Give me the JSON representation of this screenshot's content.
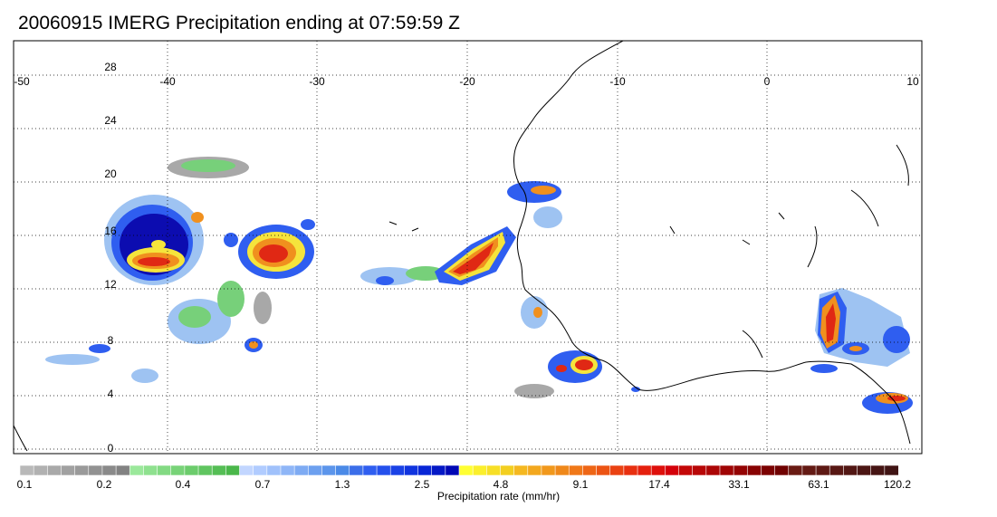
{
  "title": "20060915 IMERG Precipitation ending at 07:59:59 Z",
  "map": {
    "lon_min": -50,
    "lon_max": 10,
    "lat_min": -0.5,
    "lat_max": 30.5,
    "lon_ticks": [
      "-50",
      "-40",
      "-30",
      "-20",
      "-10",
      "0",
      "10"
    ],
    "lat_ticks": [
      "28",
      "24",
      "20",
      "16",
      "12",
      "8",
      "4",
      "0"
    ],
    "colors": {
      "gray": "#a8a8a8",
      "green": "#77d07a",
      "lightblue": "#9ec3f2",
      "blue": "#2f5ef0",
      "darkblue": "#0c0cb0",
      "yellow": "#f5e43c",
      "orange": "#f0901e",
      "red": "#e02814",
      "darkred": "#8c0a0a",
      "coast": "#000000"
    }
  },
  "colorbar": {
    "label": "Precipitation rate (mm/hr)",
    "tick_labels": [
      "0.1",
      "0.2",
      "0.4",
      "0.7",
      "1.3",
      "2.5",
      "4.8",
      "9.1",
      "17.4",
      "33.1",
      "63.1",
      "120.2"
    ],
    "bins": [
      "#b9b9b9",
      "#b1b1b1",
      "#a9a9a9",
      "#a1a1a1",
      "#9a9a9a",
      "#929292",
      "#8a8a8a",
      "#828282",
      "#9be89b",
      "#8fe18f",
      "#83da83",
      "#78d378",
      "#6ccc6c",
      "#60c560",
      "#55be55",
      "#4ab74a",
      "#c2d6ff",
      "#b1ccff",
      "#a0c1fb",
      "#8fb6f7",
      "#7eabf3",
      "#6da0ef",
      "#5c95eb",
      "#4b8ae7",
      "#3b6ee9",
      "#2f5ef0",
      "#2450ec",
      "#1a42e6",
      "#1034df",
      "#0826d6",
      "#0418c6",
      "#0008b5",
      "#ffff33",
      "#fbef2c",
      "#f7df26",
      "#f3cf20",
      "#f5b820",
      "#f3a81e",
      "#f1981c",
      "#ef881a",
      "#f07818",
      "#ee6616",
      "#ec5414",
      "#ea4212",
      "#e83010",
      "#e5200e",
      "#de100c",
      "#d4000a",
      "#c40808",
      "#b80707",
      "#ac0606",
      "#a00505",
      "#940404",
      "#880303",
      "#7c0202",
      "#700101",
      "#6a1b14",
      "#641a14",
      "#5e1914",
      "#581814",
      "#521714",
      "#4c1614",
      "#461514",
      "#401414"
    ]
  }
}
